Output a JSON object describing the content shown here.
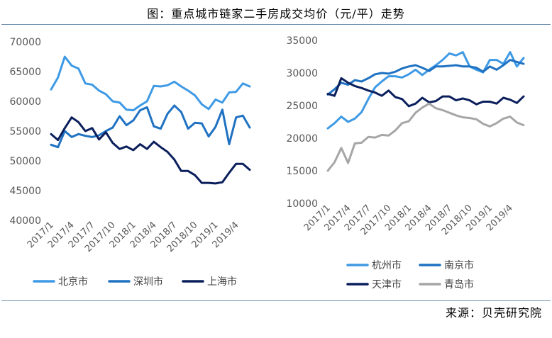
{
  "header": {
    "title": "图：重点城市链家二手房成交均价（元/平）走势"
  },
  "footer": {
    "source": "来源：贝壳研究院"
  },
  "colors": {
    "light_blue": "#3f9ae5",
    "mid_blue": "#1f72c2",
    "navy": "#0b1f5c",
    "gray": "#a6a6a6",
    "axis_text": "#595959"
  },
  "chart_data": [
    {
      "type": "line",
      "x": [
        "2017/1",
        "2017/2",
        "2017/3",
        "2017/4",
        "2017/5",
        "2017/6",
        "2017/7",
        "2017/8",
        "2017/9",
        "2017/10",
        "2017/11",
        "2017/12",
        "2018/1",
        "2018/2",
        "2018/3",
        "2018/4",
        "2018/5",
        "2018/6",
        "2018/7",
        "2018/8",
        "2018/9",
        "2018/10",
        "2018/11",
        "2018/12",
        "2019/1",
        "2019/2",
        "2019/3",
        "2019/4",
        "2019/5",
        "2019/6"
      ],
      "x_tick_labels": [
        "2017/1",
        "2017/4",
        "2017/7",
        "2017/10",
        "2018/1",
        "2018/4",
        "2018/7",
        "2018/10",
        "2019/1",
        "2019/4"
      ],
      "ylim": [
        40000,
        70000
      ],
      "y_ticks": [
        40000,
        45000,
        50000,
        55000,
        60000,
        65000,
        70000
      ],
      "legend_position": "bottom",
      "series": [
        {
          "name": "北京市",
          "color_key": "light_blue",
          "values": [
            62000,
            64000,
            67500,
            66000,
            65500,
            63000,
            62800,
            61800,
            61200,
            60000,
            59800,
            58600,
            58500,
            59300,
            60000,
            62600,
            62500,
            62700,
            63300,
            62500,
            61800,
            61000,
            59500,
            58700,
            60300,
            59800,
            61500,
            61600,
            63000,
            62500
          ]
        },
        {
          "name": "深圳市",
          "color_key": "mid_blue",
          "values": [
            52700,
            52300,
            55000,
            54000,
            54500,
            54200,
            54000,
            54300,
            55000,
            55600,
            57500,
            56000,
            56800,
            58500,
            59000,
            55800,
            55400,
            57900,
            59300,
            58200,
            55400,
            56400,
            56300,
            54100,
            55700,
            58600,
            52800,
            57300,
            57600,
            55600
          ]
        },
        {
          "name": "上海市",
          "color_key": "navy",
          "values": [
            54500,
            53500,
            55500,
            57300,
            56500,
            55000,
            55500,
            53600,
            54800,
            53000,
            52000,
            52400,
            51800,
            52800,
            52000,
            53200,
            52300,
            51500,
            50200,
            48300,
            48300,
            47600,
            46300,
            46300,
            46200,
            46400,
            48000,
            49500,
            49500,
            48500
          ]
        }
      ]
    },
    {
      "type": "line",
      "x": [
        "2017/1",
        "2017/2",
        "2017/3",
        "2017/4",
        "2017/5",
        "2017/6",
        "2017/7",
        "2017/8",
        "2017/9",
        "2017/10",
        "2017/11",
        "2017/12",
        "2018/1",
        "2018/2",
        "2018/3",
        "2018/4",
        "2018/5",
        "2018/6",
        "2018/7",
        "2018/8",
        "2018/9",
        "2018/10",
        "2018/11",
        "2018/12",
        "2019/1",
        "2019/2",
        "2019/3",
        "2019/4",
        "2019/5",
        "2019/6"
      ],
      "x_tick_labels": [
        "2017/1",
        "2017/4",
        "2017/7",
        "2017/10",
        "2018/1",
        "2018/4",
        "2018/7",
        "2018/10",
        "2019/1",
        "2019/4"
      ],
      "ylim": [
        10000,
        35000
      ],
      "y_ticks": [
        10000,
        15000,
        20000,
        25000,
        30000,
        35000
      ],
      "legend_position": "bottom",
      "series": [
        {
          "name": "杭州市",
          "color_key": "light_blue",
          "values": [
            21500,
            22300,
            23300,
            22500,
            23000,
            24000,
            26000,
            27800,
            28700,
            29500,
            29500,
            29300,
            29800,
            30500,
            29700,
            30500,
            31200,
            32000,
            33000,
            32700,
            33200,
            31000,
            30500,
            30100,
            32000,
            32000,
            31400,
            33200,
            31000,
            32300
          ]
        },
        {
          "name": "南京市",
          "color_key": "mid_blue",
          "values": [
            26700,
            27500,
            28500,
            28200,
            28900,
            28700,
            29200,
            29800,
            30000,
            29900,
            30200,
            30700,
            31000,
            31200,
            30800,
            30300,
            31000,
            31000,
            31100,
            31200,
            31000,
            31000,
            30800,
            30200,
            31000,
            30500,
            31200,
            32000,
            31700,
            31400
          ]
        },
        {
          "name": "天津市",
          "color_key": "navy",
          "values": [
            26800,
            26500,
            29200,
            28500,
            28000,
            27700,
            27300,
            27000,
            26500,
            27300,
            26300,
            26000,
            24900,
            25300,
            26200,
            25500,
            25700,
            26400,
            26400,
            25800,
            26100,
            25800,
            25200,
            25600,
            25600,
            25300,
            26200,
            25900,
            25400,
            26400
          ]
        },
        {
          "name": "青岛市",
          "color_key": "gray",
          "values": [
            15000,
            16300,
            18500,
            16200,
            19200,
            19300,
            20200,
            20100,
            20500,
            20400,
            21200,
            22300,
            22600,
            23900,
            24700,
            25300,
            24600,
            24300,
            23900,
            23500,
            23200,
            23100,
            22900,
            22200,
            21800,
            22300,
            23000,
            23300,
            22400,
            22000
          ]
        }
      ]
    }
  ]
}
